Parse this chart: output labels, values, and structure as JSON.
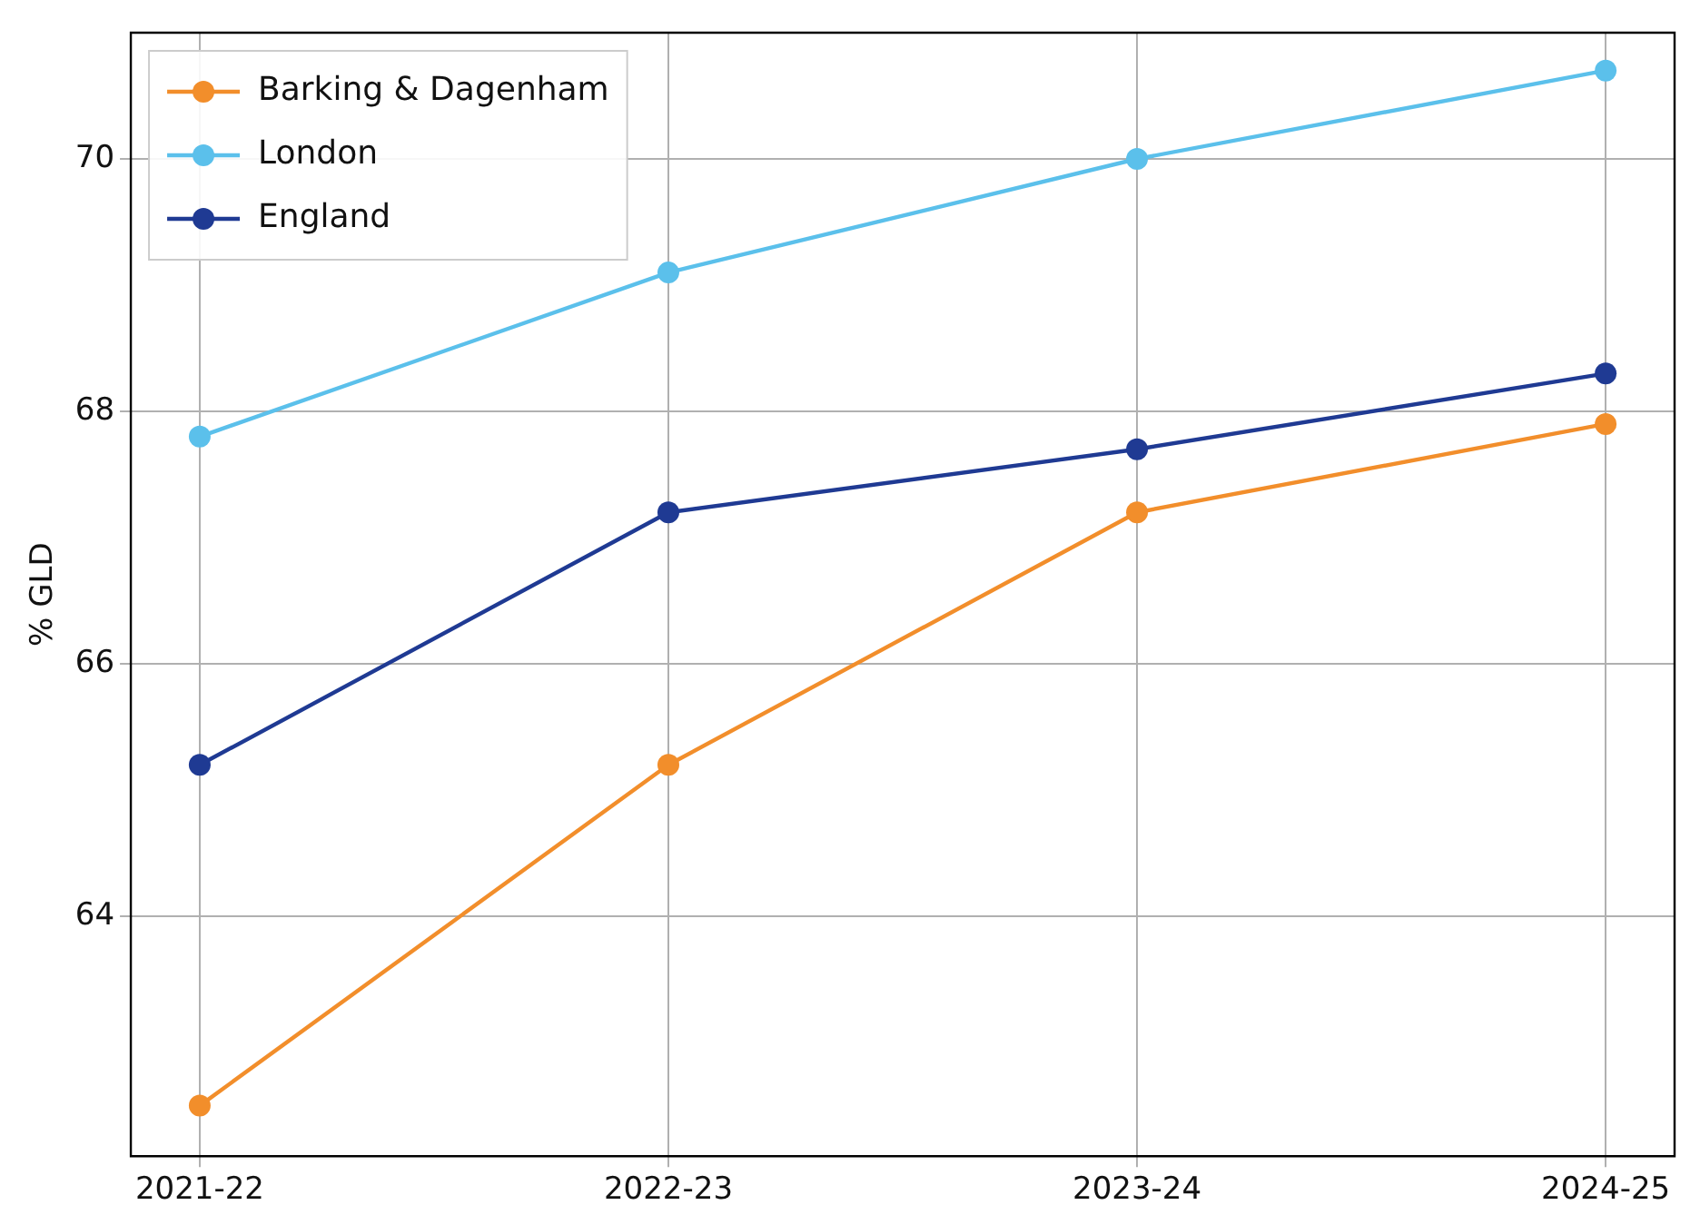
{
  "chart_data": {
    "type": "line",
    "ylabel": "% GLD",
    "categories": [
      "2021-22",
      "2022-23",
      "2023-24",
      "2024-25"
    ],
    "series": [
      {
        "name": "Barking & Dagenham",
        "color": "#f28e2b",
        "values": [
          62.5,
          65.2,
          67.2,
          67.9
        ]
      },
      {
        "name": "London",
        "color": "#5bc0eb",
        "values": [
          67.8,
          69.1,
          70.0,
          70.7
        ]
      },
      {
        "name": "England",
        "color": "#1f3a93",
        "values": [
          65.2,
          67.2,
          67.7,
          68.3
        ]
      }
    ],
    "ylim": [
      62.1,
      71.0
    ],
    "yticks": [
      64,
      66,
      68,
      70
    ],
    "grid": true,
    "legend": "top left",
    "marker": "circle",
    "line_style": "solid"
  }
}
